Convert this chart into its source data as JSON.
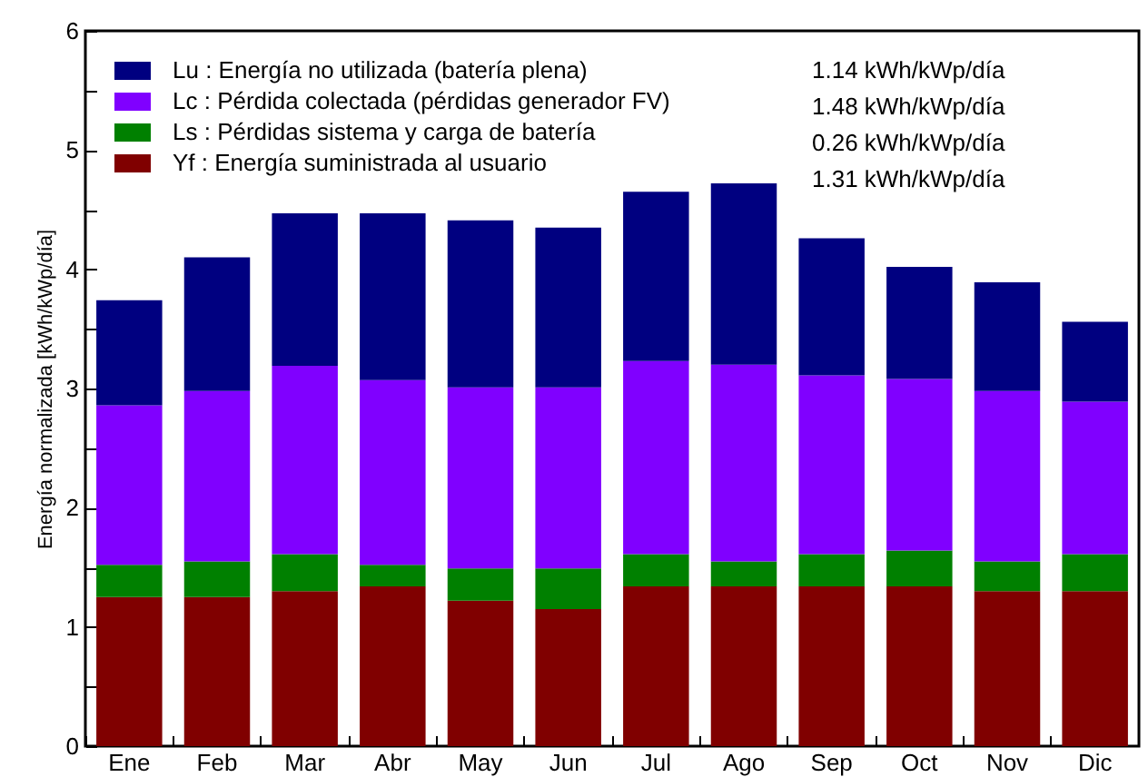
{
  "chart_data": {
    "type": "bar",
    "stacked": true,
    "ylabel": "Energía normalizada [kWh/kWp/día]",
    "categories": [
      "Ene",
      "Feb",
      "Mar",
      "Abr",
      "May",
      "Jun",
      "Jul",
      "Ago",
      "Sep",
      "Oct",
      "Nov",
      "Dic"
    ],
    "series": [
      {
        "name": "Yf : Energía suministrada al usuario",
        "color": "#800000",
        "values": [
          1.25,
          1.25,
          1.3,
          1.34,
          1.22,
          1.15,
          1.34,
          1.34,
          1.34,
          1.34,
          1.3,
          1.3
        ]
      },
      {
        "name": "Ls : Pérdidas sistema y carga de batería",
        "color": "#008000",
        "values": [
          0.27,
          0.3,
          0.31,
          0.18,
          0.27,
          0.34,
          0.27,
          0.21,
          0.27,
          0.3,
          0.25,
          0.31
        ]
      },
      {
        "name": "Lc : Pérdida colectada (pérdidas generador FV)",
        "color": "#8000ff",
        "values": [
          1.34,
          1.43,
          1.58,
          1.55,
          1.52,
          1.52,
          1.62,
          1.65,
          1.5,
          1.44,
          1.43,
          1.28
        ]
      },
      {
        "name": "Lu : Energía no utilizada (batería plena)",
        "color": "#000080",
        "values": [
          0.88,
          1.12,
          1.28,
          1.4,
          1.4,
          1.34,
          1.42,
          1.52,
          1.15,
          0.94,
          0.91,
          0.67
        ]
      }
    ],
    "ylim": [
      0,
      6
    ],
    "yticks": [
      0,
      {
        "value": 0.5,
        "label": null
      },
      1,
      {
        "value": 1.5,
        "label": null
      },
      2,
      {
        "value": 2.5,
        "label": null
      },
      3,
      {
        "value": 3.5,
        "label": null
      },
      4,
      {
        "value": 4.5,
        "label": null
      },
      5,
      {
        "value": 5.5,
        "label": null
      },
      6
    ],
    "legend": "top left",
    "grid": false,
    "annotations": [
      "1.14 kWh/kWp/día",
      "1.48 kWh/kWp/día",
      "0.26 kWh/kWp/día",
      "1.31 kWh/kWp/día"
    ]
  }
}
